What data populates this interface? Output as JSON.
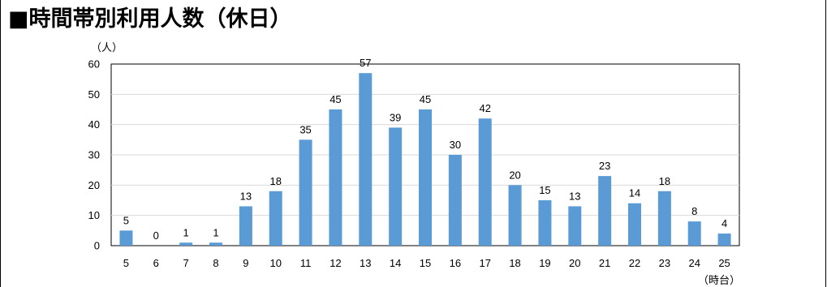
{
  "page": {
    "title": "■時間帯別利用人数（休日）"
  },
  "chart_data": {
    "type": "bar",
    "title": "",
    "ylabel_unit": "（人）",
    "xlabel_unit": "（時台）",
    "categories": [
      "5",
      "6",
      "7",
      "8",
      "9",
      "10",
      "11",
      "12",
      "13",
      "14",
      "15",
      "16",
      "17",
      "18",
      "19",
      "20",
      "21",
      "22",
      "23",
      "24",
      "25"
    ],
    "values": [
      5,
      0,
      1,
      1,
      13,
      18,
      35,
      45,
      57,
      39,
      45,
      30,
      42,
      20,
      15,
      13,
      23,
      14,
      18,
      8,
      4
    ],
    "ylim": [
      0,
      60
    ],
    "yticks": [
      0,
      10,
      20,
      30,
      40,
      50,
      60
    ],
    "grid": true,
    "data_labels": true,
    "legend": "none",
    "bar_color": "#5B9BD5"
  }
}
